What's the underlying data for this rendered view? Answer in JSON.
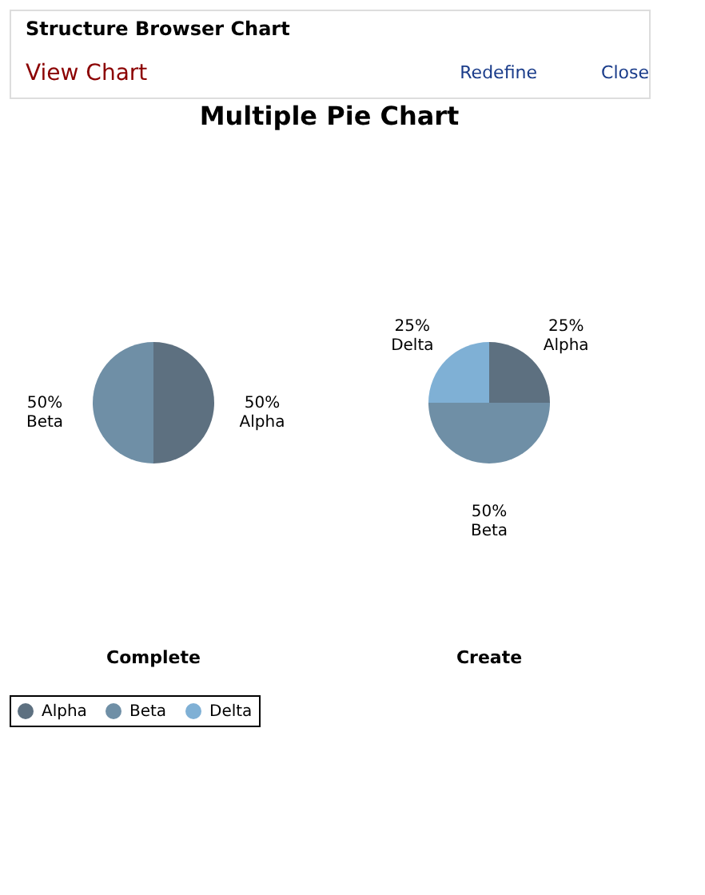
{
  "chart_data": [
    {
      "type": "other",
      "title": "Multiple Pie Chart",
      "annotations": [
        "Structure Browser Chart",
        "View Chart",
        "Redefine",
        "Close"
      ]
    },
    {
      "type": "pie",
      "title": "Complete",
      "categories": [
        "Alpha",
        "Beta"
      ],
      "values": [
        50,
        50
      ],
      "value_labels": [
        "50%",
        "50%"
      ],
      "colors": [
        "#5d7080",
        "#6f8fa6"
      ],
      "legend": "bottom"
    },
    {
      "type": "pie",
      "title": "Create",
      "categories": [
        "Alpha",
        "Beta",
        "Delta"
      ],
      "values": [
        25,
        50,
        25
      ],
      "value_labels": [
        "25%",
        "50%",
        "25%"
      ],
      "colors": [
        "#5d7080",
        "#6f8fa6",
        "#7fb0d5"
      ],
      "legend": "bottom"
    }
  ]
}
